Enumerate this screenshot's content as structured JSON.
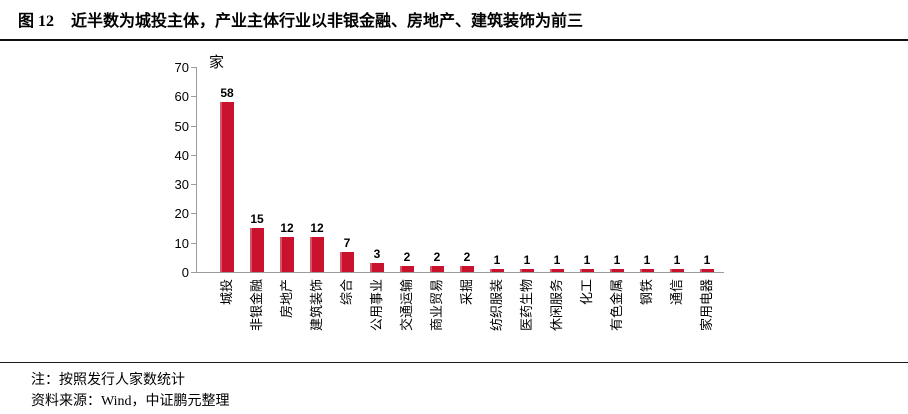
{
  "header": {
    "figure_label": "图 12",
    "title": "近半数为城投主体，产业主体行业以非银金融、房地产、建筑装饰为前三"
  },
  "chart_data": {
    "type": "bar",
    "title": "",
    "unit_label": "家",
    "categories": [
      "城投",
      "非银金融",
      "房地产",
      "建筑装饰",
      "综合",
      "公用事业",
      "交通运输",
      "商业贸易",
      "采掘",
      "纺织服装",
      "医药生物",
      "休闲服务",
      "化工",
      "有色金属",
      "钢铁",
      "通信",
      "家用电器"
    ],
    "values": [
      58,
      15,
      12,
      12,
      7,
      3,
      2,
      2,
      2,
      1,
      1,
      1,
      1,
      1,
      1,
      1,
      1
    ],
    "xlabel": "",
    "ylabel": "",
    "ylim": [
      0,
      70
    ],
    "y_ticks": [
      0,
      10,
      20,
      30,
      40,
      50,
      60,
      70
    ],
    "grid": false,
    "legend_position": "none",
    "data_labels": true,
    "bar_color": "#c9122d",
    "axis_color": "#9b9b9b",
    "label_rotation_deg": -90
  },
  "footer": {
    "note": "注：按照发行人家数统计",
    "source": "资料来源：Wind，中证鹏元整理"
  }
}
